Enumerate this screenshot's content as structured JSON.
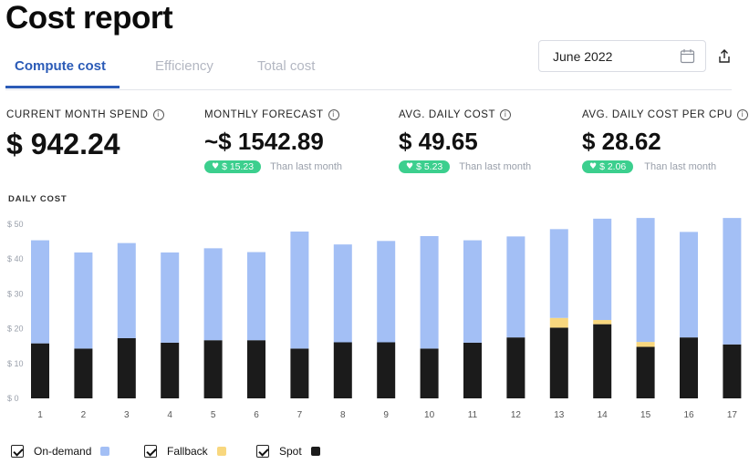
{
  "page": {
    "title": "Cost report"
  },
  "tabs": [
    {
      "label": "Compute cost",
      "active": true
    },
    {
      "label": "Efficiency",
      "active": false
    },
    {
      "label": "Total cost",
      "active": false
    }
  ],
  "date_picker": {
    "value": "June 2022",
    "icon": "calendar-icon"
  },
  "export": {
    "icon": "export-icon"
  },
  "metrics": [
    {
      "label": "CURRENT MONTH SPEND",
      "value": "$ 942.24"
    },
    {
      "label": "MONTHLY FORECAST",
      "value": "~$ 1542.89",
      "delta": "$ 15.23",
      "delta_text": "Than last month"
    },
    {
      "label": "AVG. DAILY COST",
      "value": "$ 49.65",
      "delta": "$ 5.23",
      "delta_text": "Than last month"
    },
    {
      "label": "AVG. DAILY COST PER CPU",
      "value": "$ 28.62",
      "delta": "$ 2.06",
      "delta_text": "Than last month"
    }
  ],
  "colors": {
    "on_demand": "#a3bff5",
    "fallback": "#f8d77e",
    "spot": "#1b1b1b",
    "accent": "#2b5bb7",
    "positive": "#3ccf8e"
  },
  "chart_data": {
    "type": "bar",
    "title": "DAILY COST",
    "stacked": true,
    "categories": [
      "1",
      "2",
      "3",
      "4",
      "5",
      "6",
      "7",
      "8",
      "9",
      "10",
      "11",
      "12",
      "13",
      "14",
      "15",
      "16",
      "17"
    ],
    "y_ticks": [
      "$ 0",
      "$ 10",
      "$ 20",
      "$ 30",
      "$ 40",
      "$ 50"
    ],
    "ylim": [
      0,
      50
    ],
    "series": [
      {
        "name": "Spot",
        "values": [
          15.8,
          14.3,
          17.3,
          16.0,
          16.7,
          16.7,
          14.3,
          16.1,
          16.1,
          14.3,
          16.0,
          17.5,
          20.3,
          21.3,
          14.8,
          17.5,
          15.5
        ]
      },
      {
        "name": "Fallback",
        "values": [
          0,
          0,
          0,
          0,
          0,
          0,
          0,
          0,
          0,
          0,
          0,
          0,
          2.8,
          1.2,
          1.4,
          0,
          0
        ]
      },
      {
        "name": "On-demand",
        "values": [
          29.6,
          27.6,
          27.3,
          25.9,
          26.4,
          25.3,
          33.6,
          28.1,
          29.1,
          32.3,
          29.4,
          29.0,
          25.5,
          29.1,
          35.6,
          30.3,
          36.3
        ]
      }
    ],
    "legend": [
      {
        "label": "On-demand",
        "checked": true
      },
      {
        "label": "Fallback",
        "checked": true
      },
      {
        "label": "Spot",
        "checked": true
      }
    ],
    "grid": false,
    "legend_position": "bottom-left"
  }
}
